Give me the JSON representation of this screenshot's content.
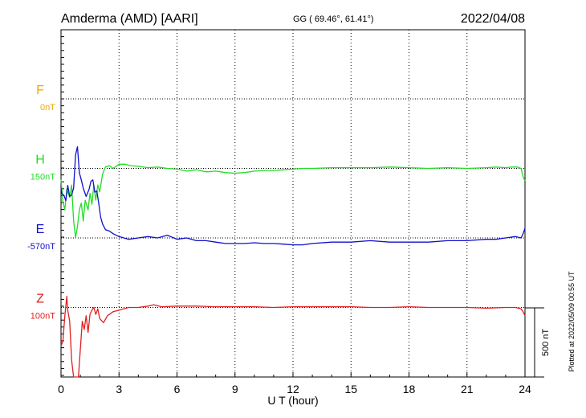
{
  "header": {
    "station": "Amderma (AMD)  [AARI]",
    "coords": "GG ( 69.46°,  61.41°)",
    "date": "2022/04/08"
  },
  "plotted_note": "Plotted at 2022/05/09 00:55 UT",
  "scale_label": "500 nT",
  "chart_data": {
    "type": "line",
    "xlabel": "U T (hour)",
    "xlim": [
      0,
      24
    ],
    "xticks": [
      0,
      3,
      6,
      9,
      12,
      15,
      18,
      21,
      24
    ],
    "grid": true,
    "nt_per_unit": 500,
    "series": [
      {
        "name": "F",
        "baseline_label": "0nT",
        "color": "#f0a800",
        "baseline_offset": 0,
        "x": [],
        "y": []
      },
      {
        "name": "H",
        "baseline_label": "150nT",
        "color": "#22dd22",
        "baseline_offset": 1,
        "x": [
          0,
          0.1,
          0.2,
          0.3,
          0.45,
          0.55,
          0.65,
          0.75,
          0.85,
          0.95,
          1.05,
          1.15,
          1.25,
          1.4,
          1.5,
          1.6,
          1.7,
          1.8,
          1.9,
          2.0,
          2.15,
          2.3,
          2.5,
          2.7,
          3.0,
          3.3,
          3.6,
          4.0,
          4.5,
          5.0,
          5.5,
          6.0,
          6.5,
          7.0,
          7.5,
          8.0,
          8.5,
          9.0,
          9.5,
          10.0,
          10.5,
          11.0,
          11.5,
          12.0,
          12.5,
          13.0,
          14.0,
          15.0,
          16.0,
          17.0,
          18.0,
          19.0,
          20.0,
          21.0,
          22.0,
          22.5,
          23.0,
          23.3,
          23.6,
          23.8,
          23.9,
          24.0
        ],
        "y": [
          -80,
          -240,
          -300,
          -150,
          -210,
          -120,
          -380,
          -500,
          -420,
          -300,
          -250,
          -380,
          -230,
          -300,
          -180,
          -260,
          -120,
          -230,
          -120,
          -170,
          -40,
          10,
          20,
          0,
          30,
          30,
          20,
          15,
          5,
          10,
          0,
          -5,
          -20,
          -10,
          -25,
          -20,
          -30,
          -35,
          -30,
          -20,
          -15,
          -15,
          -10,
          -5,
          0,
          0,
          5,
          5,
          5,
          10,
          5,
          0,
          5,
          0,
          5,
          10,
          5,
          10,
          10,
          0,
          -60,
          -90
        ]
      },
      {
        "name": "E",
        "baseline_label": "-570nT",
        "color": "#1010cc",
        "baseline_offset": 2,
        "x": [
          0,
          0.05,
          0.15,
          0.25,
          0.35,
          0.45,
          0.55,
          0.65,
          0.75,
          0.85,
          0.95,
          1.05,
          1.15,
          1.3,
          1.45,
          1.55,
          1.65,
          1.75,
          1.85,
          1.95,
          2.05,
          2.15,
          2.3,
          2.5,
          2.7,
          3.0,
          3.5,
          4.0,
          4.5,
          5.0,
          5.5,
          6.0,
          6.5,
          7.0,
          7.5,
          8.0,
          8.5,
          9.0,
          9.5,
          10.0,
          10.5,
          11.0,
          11.5,
          12.0,
          12.5,
          13.0,
          14.0,
          15.0,
          16.0,
          17.0,
          18.0,
          19.0,
          20.0,
          21.0,
          22.0,
          22.5,
          23.0,
          23.5,
          23.8,
          23.9,
          24.0
        ],
        "y": [
          360,
          320,
          310,
          270,
          380,
          300,
          310,
          360,
          600,
          660,
          470,
          420,
          360,
          300,
          350,
          410,
          420,
          330,
          340,
          250,
          150,
          100,
          60,
          50,
          30,
          10,
          -10,
          0,
          10,
          0,
          20,
          -10,
          0,
          -20,
          -20,
          -30,
          -40,
          -40,
          -40,
          -35,
          -40,
          -40,
          -45,
          -50,
          -50,
          -40,
          -30,
          -30,
          -20,
          -30,
          -30,
          -30,
          -20,
          -20,
          -10,
          -10,
          0,
          10,
          0,
          30,
          70
        ]
      },
      {
        "name": "Z",
        "baseline_label": "100nT",
        "color": "#e02020",
        "baseline_offset": 3,
        "x": [
          0,
          0.1,
          0.2,
          0.3,
          0.35,
          0.45,
          0.55,
          0.65,
          0.75,
          0.82,
          0.9,
          1.0,
          1.1,
          1.2,
          1.3,
          1.4,
          1.5,
          1.6,
          1.7,
          1.8,
          1.9,
          2.0,
          2.2,
          2.4,
          2.7,
          3.0,
          3.5,
          4.0,
          4.5,
          4.8,
          5.2,
          6.0,
          7.0,
          8.0,
          9.0,
          10.0,
          11.0,
          12.0,
          13.0,
          14.0,
          15.0,
          16.0,
          17.0,
          18.0,
          19.0,
          20.0,
          21.0,
          22.0,
          23.0,
          23.5,
          23.8,
          23.9,
          24.0
        ],
        "y": [
          -280,
          -240,
          -60,
          80,
          -20,
          -100,
          -380,
          -560,
          -800,
          -950,
          -700,
          -300,
          -100,
          -160,
          -60,
          -180,
          -50,
          -20,
          0,
          -50,
          -10,
          -80,
          -110,
          -60,
          -30,
          -20,
          0,
          0,
          10,
          20,
          5,
          10,
          10,
          5,
          5,
          5,
          0,
          5,
          5,
          5,
          5,
          0,
          0,
          5,
          0,
          0,
          0,
          -5,
          0,
          0,
          -10,
          -30,
          -60
        ]
      }
    ]
  }
}
